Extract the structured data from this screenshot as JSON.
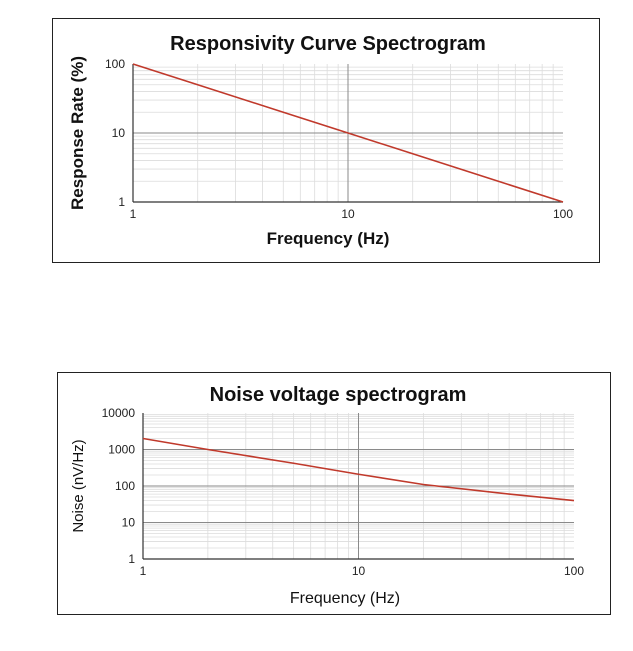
{
  "chart_data": [
    {
      "type": "line",
      "title": "Responsivity Curve Spectrogram",
      "xlabel": "Frequency (Hz)",
      "ylabel": "Response Rate (%)",
      "x_scale": "log",
      "y_scale": "log",
      "xlim": [
        1,
        100
      ],
      "ylim": [
        1,
        100
      ],
      "x_ticks": [
        "1",
        "10",
        "100"
      ],
      "y_ticks": [
        "1",
        "10",
        "100"
      ],
      "grid": true,
      "line_color": "#c0392b",
      "series": [
        {
          "x": [
            1,
            2,
            5,
            10,
            20,
            50,
            100
          ],
          "y": [
            100,
            50,
            20,
            10,
            5,
            2,
            1
          ]
        }
      ]
    },
    {
      "type": "line",
      "title": "Noise voltage spectrogram",
      "xlabel": "Frequency (Hz)",
      "ylabel": "Noise (nV/Hz)",
      "x_scale": "log",
      "y_scale": "log",
      "xlim": [
        1,
        100
      ],
      "ylim": [
        1,
        10000
      ],
      "x_ticks": [
        "1",
        "10",
        "100"
      ],
      "y_ticks": [
        "1",
        "10",
        "100",
        "1000",
        "10000"
      ],
      "grid": true,
      "line_color": "#c0392b",
      "series": [
        {
          "x": [
            1,
            2,
            5,
            10,
            20,
            50,
            100
          ],
          "y": [
            2000,
            1000,
            420,
            210,
            110,
            60,
            40
          ]
        }
      ]
    }
  ]
}
